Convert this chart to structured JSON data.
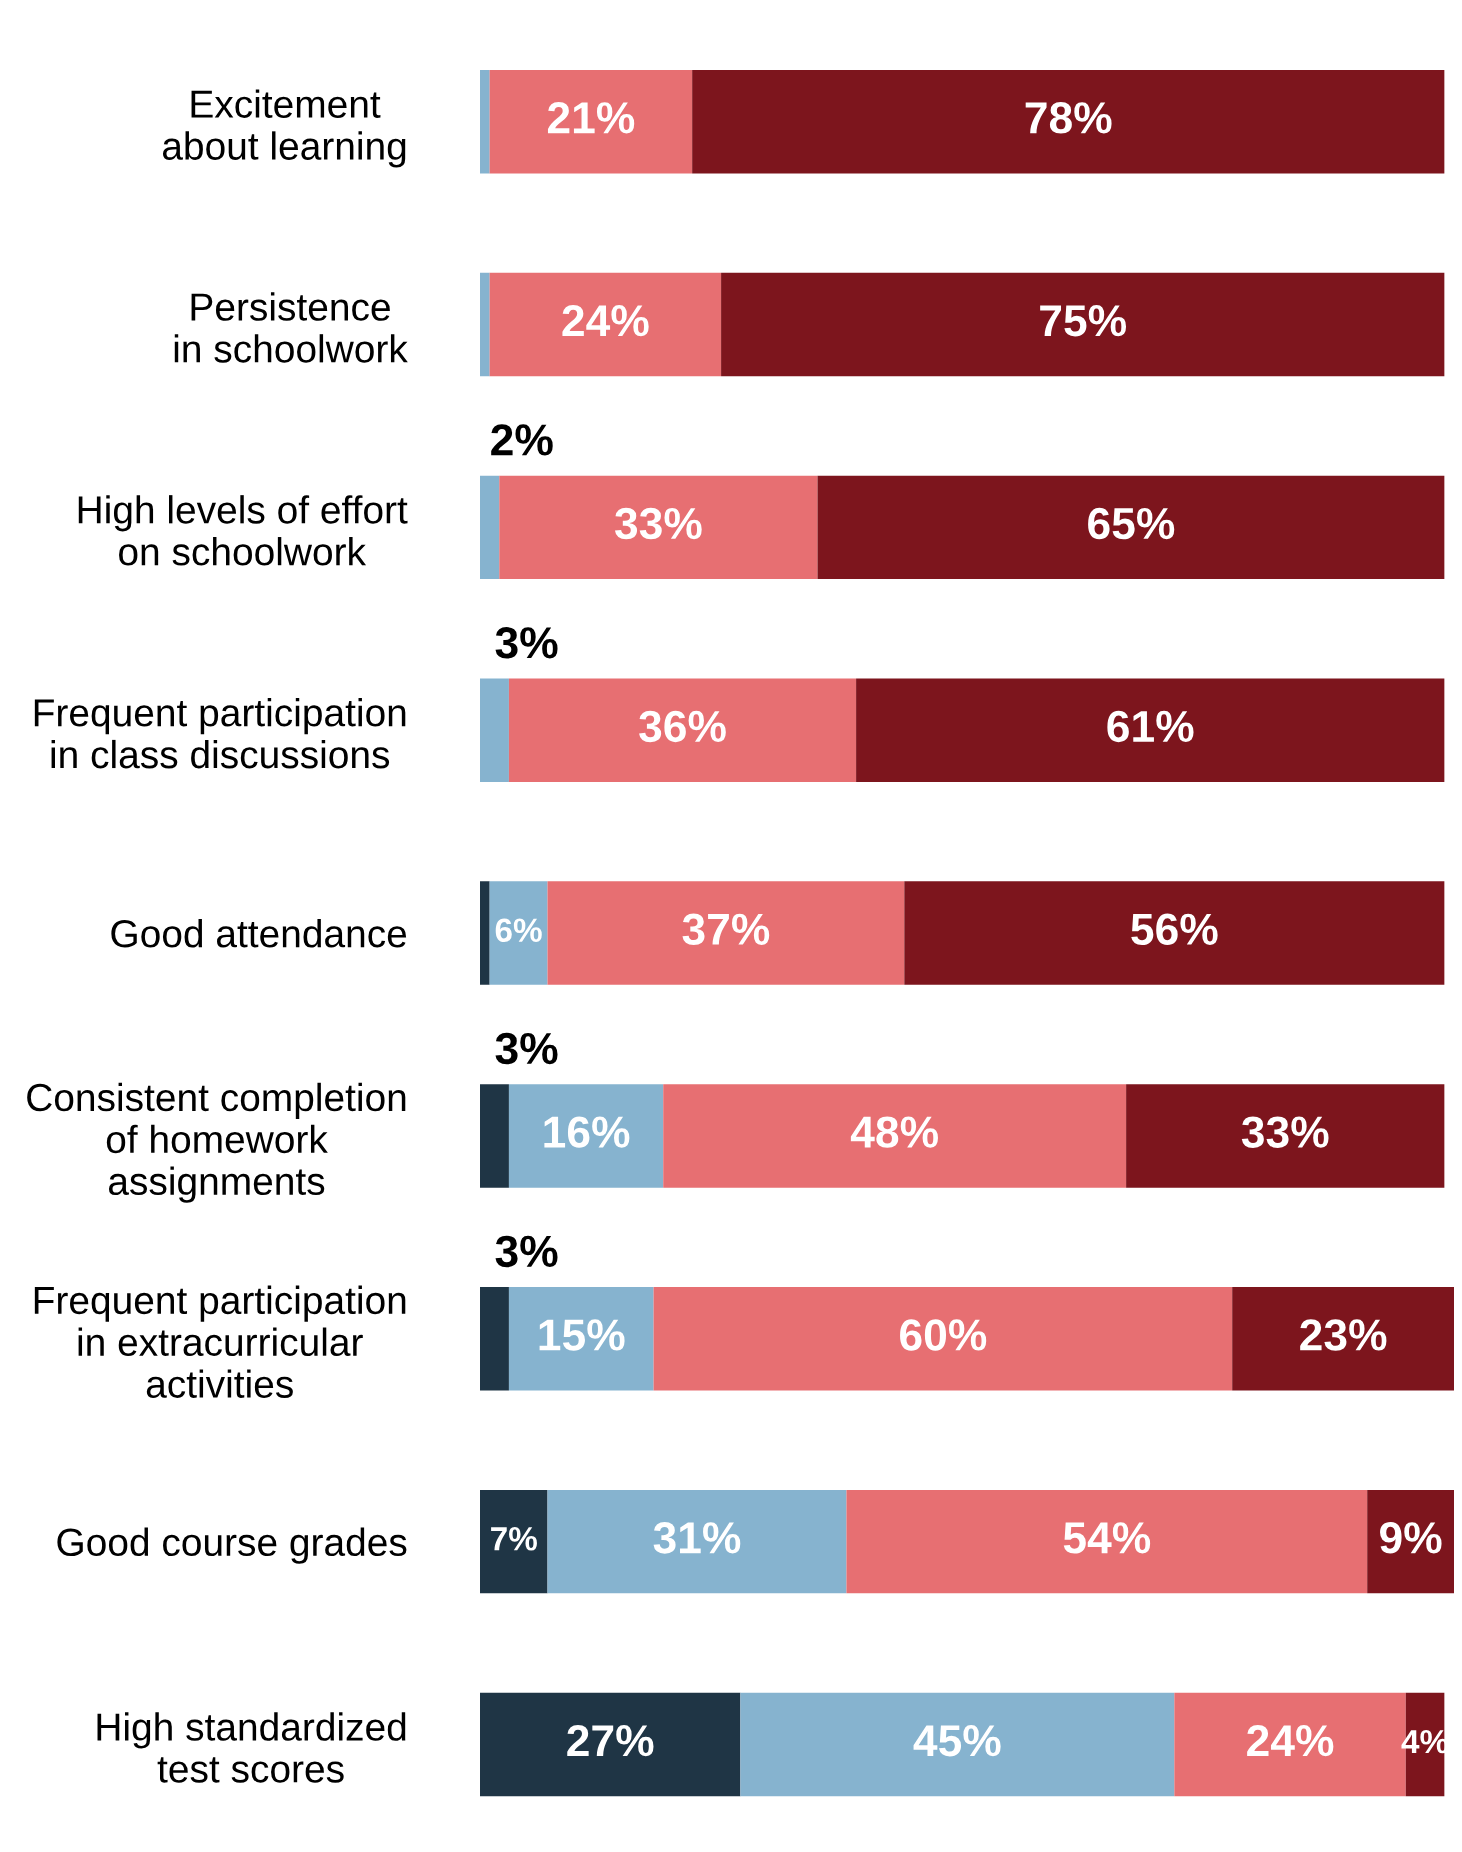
{
  "chart_data": {
    "type": "bar",
    "orientation": "horizontal",
    "stacked": true,
    "categories": [
      "Excitement\nabout learning",
      "Persistence\nin schoolwork",
      "High levels of effort\non schoolwork",
      "Frequent participation\nin class discussions",
      "Good attendance",
      "Consistent completion\nof homework\nassignments",
      "Frequent participation\nin extracurricular\nactivities",
      "Good course grades",
      "High standardized\ntest scores"
    ],
    "series": [
      {
        "color": "#1f3545",
        "values": [
          0,
          0,
          0,
          0,
          1,
          3,
          3,
          7,
          27
        ],
        "value_labels": [
          null,
          null,
          null,
          null,
          null,
          "3%",
          "3%",
          "7%",
          "27%"
        ]
      },
      {
        "color": "#86b3cf",
        "values": [
          1,
          1,
          2,
          3,
          6,
          16,
          15,
          31,
          45
        ],
        "value_labels": [
          null,
          null,
          "2%",
          "3%",
          "6%",
          "16%",
          "15%",
          "31%",
          "45%"
        ]
      },
      {
        "color": "#e76f72",
        "values": [
          21,
          24,
          33,
          36,
          37,
          48,
          60,
          54,
          24
        ],
        "value_labels": [
          "21%",
          "24%",
          "33%",
          "36%",
          "37%",
          "48%",
          "60%",
          "54%",
          "24%"
        ]
      },
      {
        "color": "#7d151d",
        "values": [
          78,
          75,
          65,
          61,
          56,
          33,
          23,
          9,
          4
        ],
        "value_labels": [
          "78%",
          "75%",
          "65%",
          "61%",
          "56%",
          "33%",
          "23%",
          "9%",
          "4%"
        ]
      }
    ]
  }
}
